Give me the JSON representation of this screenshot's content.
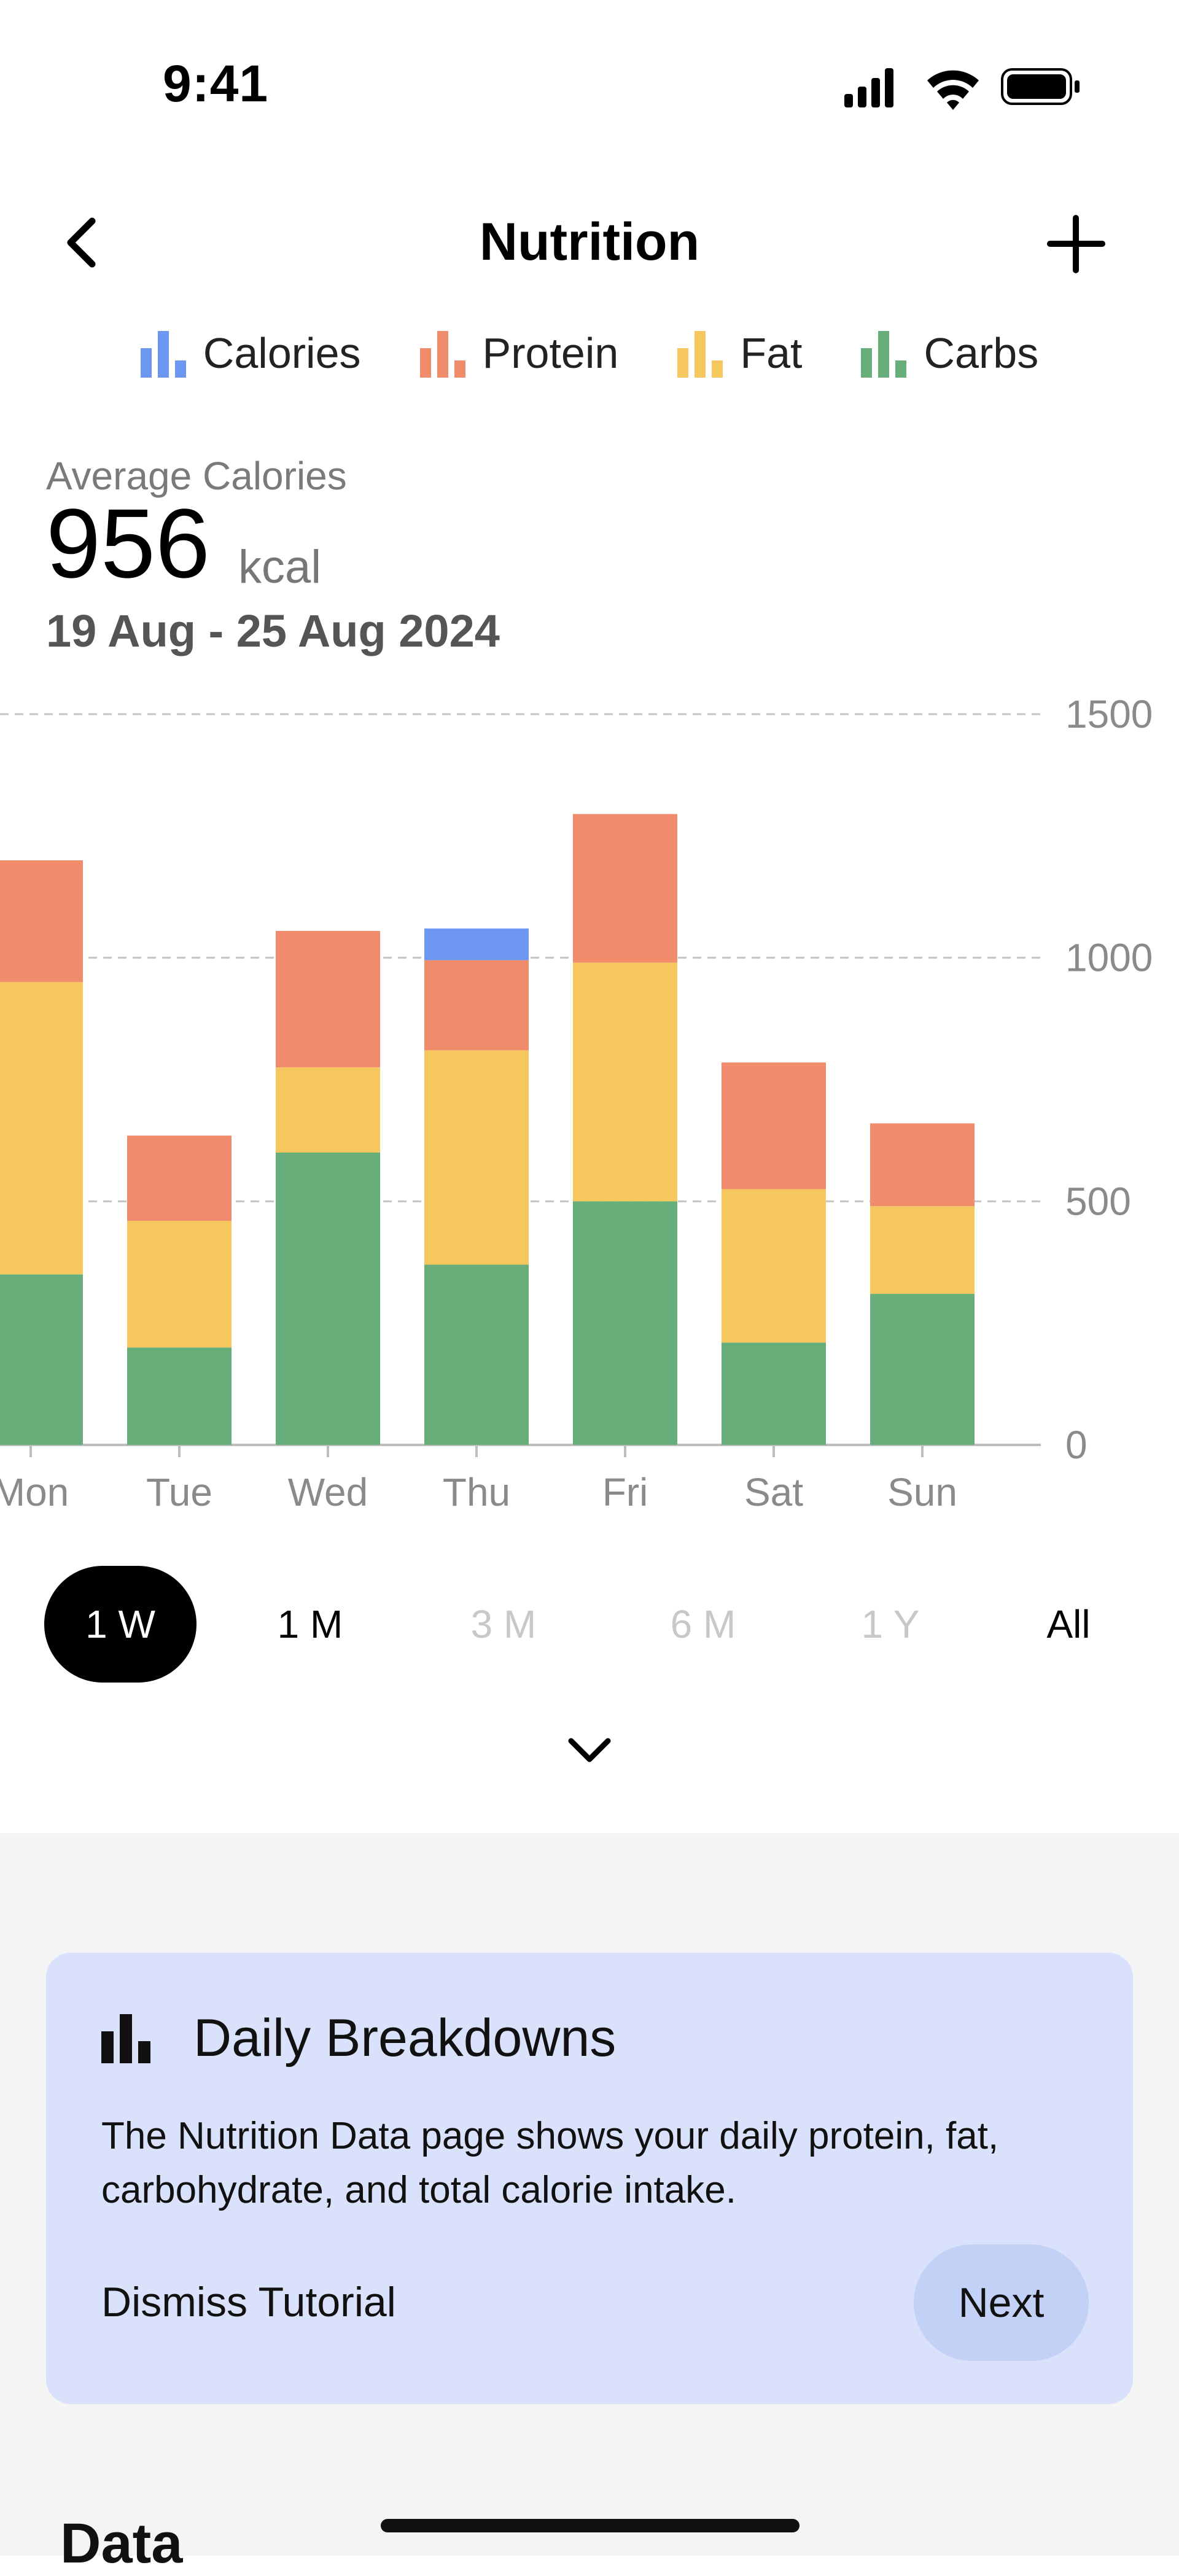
{
  "status_bar": {
    "time": "9:41"
  },
  "nav": {
    "title": "Nutrition"
  },
  "legend": [
    {
      "label": "Calories",
      "color": "#6d97f0"
    },
    {
      "label": "Protein",
      "color": "#f08c6c"
    },
    {
      "label": "Fat",
      "color": "#f6c65f"
    },
    {
      "label": "Carbs",
      "color": "#67ae7b"
    }
  ],
  "summary": {
    "label": "Average Calories",
    "value": "956",
    "unit": "kcal",
    "date_range": "19 Aug - 25 Aug 2024"
  },
  "chart_data": {
    "type": "bar",
    "stacked": true,
    "categories": [
      "Mon",
      "Tue",
      "Wed",
      "Thu",
      "Fri",
      "Sat",
      "Sun"
    ],
    "series": [
      {
        "name": "Carbs",
        "color": "#67ae7b",
        "values": [
          350,
          200,
          600,
          370,
          500,
          210,
          310
        ]
      },
      {
        "name": "Fat",
        "color": "#f6c65f",
        "values": [
          600,
          260,
          175,
          440,
          490,
          315,
          180
        ]
      },
      {
        "name": "Protein",
        "color": "#f08c6c",
        "values": [
          250,
          175,
          280,
          185,
          305,
          260,
          170
        ]
      },
      {
        "name": "Calories",
        "color": "#6d97f0",
        "values": [
          0,
          0,
          0,
          65,
          0,
          0,
          0
        ]
      }
    ],
    "ylim": [
      0,
      1500
    ],
    "yticks": [
      0,
      500,
      1000,
      1500
    ],
    "grid": true
  },
  "ranges": [
    {
      "label": "1 W",
      "state": "active"
    },
    {
      "label": "1 M",
      "state": "enabled"
    },
    {
      "label": "3 M",
      "state": "disabled"
    },
    {
      "label": "6 M",
      "state": "disabled"
    },
    {
      "label": "1 Y",
      "state": "disabled"
    },
    {
      "label": "All",
      "state": "enabled"
    }
  ],
  "tutorial": {
    "title": "Daily Breakdowns",
    "body": "The Nutrition Data page shows your daily protein, fat, carbohydrate, and total calorie intake.",
    "dismiss_label": "Dismiss Tutorial",
    "next_label": "Next"
  },
  "data_section": {
    "heading": "Data"
  }
}
